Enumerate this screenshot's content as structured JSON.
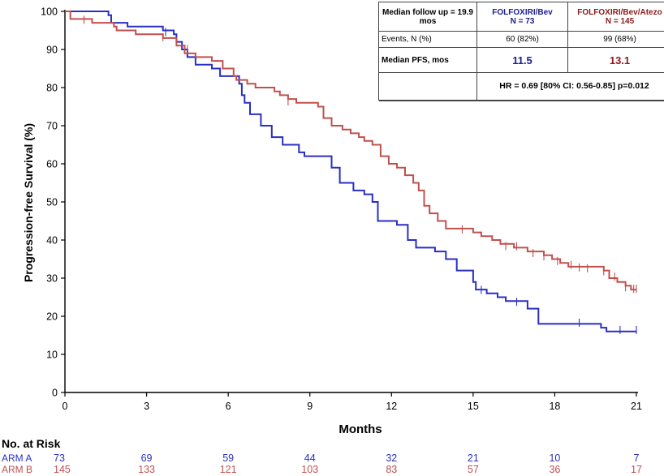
{
  "chart_data": {
    "type": "line",
    "subtype": "kaplan-meier",
    "xlabel": "Months",
    "ylabel": "Progression-free Survival (%)",
    "xlim": [
      0,
      21
    ],
    "ylim": [
      0,
      100
    ],
    "x_ticks": [
      0,
      3,
      6,
      9,
      12,
      15,
      18,
      21
    ],
    "y_ticks": [
      0,
      10,
      20,
      30,
      40,
      50,
      60,
      70,
      80,
      90,
      100
    ],
    "grid": false,
    "series": [
      {
        "name": "ARM A",
        "color": "#2a2fc2",
        "steps": [
          [
            0,
            100
          ],
          [
            1.6,
            99
          ],
          [
            1.7,
            97
          ],
          [
            2.3,
            96
          ],
          [
            3.6,
            95
          ],
          [
            4.0,
            94
          ],
          [
            4.1,
            92
          ],
          [
            4.3,
            90
          ],
          [
            4.5,
            88
          ],
          [
            4.8,
            86
          ],
          [
            5.4,
            85
          ],
          [
            5.7,
            83
          ],
          [
            6.4,
            81
          ],
          [
            6.5,
            78
          ],
          [
            6.6,
            76
          ],
          [
            6.8,
            73
          ],
          [
            7.2,
            70
          ],
          [
            7.6,
            67
          ],
          [
            8.0,
            65
          ],
          [
            8.6,
            63
          ],
          [
            8.8,
            62
          ],
          [
            9.6,
            62
          ],
          [
            9.8,
            59
          ],
          [
            10.1,
            55
          ],
          [
            10.6,
            53
          ],
          [
            11.0,
            52
          ],
          [
            11.3,
            50
          ],
          [
            11.5,
            45
          ],
          [
            12.2,
            44
          ],
          [
            12.6,
            40
          ],
          [
            12.9,
            38
          ],
          [
            13.6,
            37
          ],
          [
            14.0,
            35
          ],
          [
            14.4,
            32
          ],
          [
            15.0,
            29
          ],
          [
            15.1,
            27
          ],
          [
            15.5,
            26
          ],
          [
            15.9,
            25
          ],
          [
            16.2,
            24
          ],
          [
            16.9,
            24
          ],
          [
            17.0,
            22
          ],
          [
            17.4,
            18
          ],
          [
            18.0,
            18
          ],
          [
            19.7,
            17
          ],
          [
            19.9,
            16
          ],
          [
            21.0,
            16
          ]
        ],
        "censor": [
          [
            3.7,
            94.6
          ],
          [
            15.3,
            26.9
          ],
          [
            16.6,
            23.8
          ],
          [
            18.9,
            18.3
          ],
          [
            20.4,
            16.4
          ],
          [
            21.0,
            16.4
          ]
        ]
      },
      {
        "name": "ARM B",
        "color": "#c0504d",
        "steps": [
          [
            0,
            100
          ],
          [
            0.2,
            98
          ],
          [
            0.7,
            98
          ],
          [
            1.0,
            97
          ],
          [
            1.8,
            96
          ],
          [
            1.9,
            95
          ],
          [
            2.6,
            94
          ],
          [
            3.6,
            93
          ],
          [
            4.1,
            91
          ],
          [
            4.4,
            89
          ],
          [
            4.8,
            88
          ],
          [
            5.4,
            87
          ],
          [
            5.8,
            85
          ],
          [
            6.2,
            83
          ],
          [
            6.3,
            82
          ],
          [
            6.7,
            81
          ],
          [
            7.0,
            80
          ],
          [
            7.7,
            79
          ],
          [
            7.9,
            78
          ],
          [
            8.2,
            77
          ],
          [
            8.5,
            76
          ],
          [
            9.0,
            76
          ],
          [
            9.3,
            75
          ],
          [
            9.5,
            72
          ],
          [
            9.8,
            70
          ],
          [
            10.2,
            69
          ],
          [
            10.5,
            68
          ],
          [
            10.8,
            67
          ],
          [
            11.0,
            66
          ],
          [
            11.3,
            65
          ],
          [
            11.6,
            62
          ],
          [
            11.9,
            60
          ],
          [
            12.2,
            59
          ],
          [
            12.5,
            57
          ],
          [
            12.8,
            55
          ],
          [
            13.0,
            53
          ],
          [
            13.2,
            49
          ],
          [
            13.4,
            47
          ],
          [
            13.7,
            45
          ],
          [
            14.0,
            43
          ],
          [
            14.6,
            43
          ],
          [
            15.0,
            42
          ],
          [
            15.3,
            41
          ],
          [
            15.7,
            40
          ],
          [
            16.0,
            39
          ],
          [
            16.5,
            38
          ],
          [
            17.0,
            37
          ],
          [
            17.6,
            36
          ],
          [
            17.9,
            35
          ],
          [
            18.2,
            34
          ],
          [
            18.5,
            33
          ],
          [
            19.5,
            33
          ],
          [
            19.8,
            32
          ],
          [
            20.0,
            30
          ],
          [
            20.3,
            29
          ],
          [
            20.6,
            28
          ],
          [
            20.8,
            27
          ],
          [
            21.0,
            27
          ]
        ],
        "censor": [
          [
            0.7,
            97.8
          ],
          [
            3.6,
            93.2
          ],
          [
            4.5,
            90.1
          ],
          [
            8.2,
            76.4
          ],
          [
            14.6,
            42.8
          ],
          [
            16.2,
            38.4
          ],
          [
            16.6,
            38.4
          ],
          [
            17.2,
            36.6
          ],
          [
            17.6,
            35.7
          ],
          [
            18.1,
            34.5
          ],
          [
            18.6,
            33.5
          ],
          [
            18.9,
            32.8
          ],
          [
            19.2,
            32.6
          ],
          [
            19.8,
            31.8
          ],
          [
            20.2,
            30.4
          ],
          [
            20.6,
            27.6
          ],
          [
            20.9,
            27.2
          ],
          [
            21.0,
            27.2
          ]
        ]
      }
    ]
  },
  "summary_table": {
    "follow_up": "Median follow up = 19.9 mos",
    "arm_a_header": "FOLFOXIRI/Bev",
    "arm_a_n": "N = 73",
    "arm_b_header": "FOLFOXIRI/Bev/Atezo",
    "arm_b_n": "N = 145",
    "events_label": "Events, N (%)",
    "events_a": "60 (82%)",
    "events_b": "99 (68%)",
    "median_label": "Median PFS, mos",
    "median_a": "11.5",
    "median_b": "13.1",
    "hr_text": "HR = 0.69 [80% CI: 0.56-0.85] p=0.012"
  },
  "risk_table": {
    "title": "No. at Risk",
    "months": [
      0,
      3,
      6,
      9,
      12,
      15,
      18,
      21
    ],
    "rows": [
      {
        "label": "ARM A",
        "color": "#2a2fc2",
        "values": [
          "73",
          "69",
          "59",
          "44",
          "32",
          "21",
          "10",
          "7"
        ]
      },
      {
        "label": "ARM B",
        "color": "#c0504d",
        "values": [
          "145",
          "133",
          "121",
          "103",
          "83",
          "57",
          "36",
          "17"
        ]
      }
    ]
  }
}
